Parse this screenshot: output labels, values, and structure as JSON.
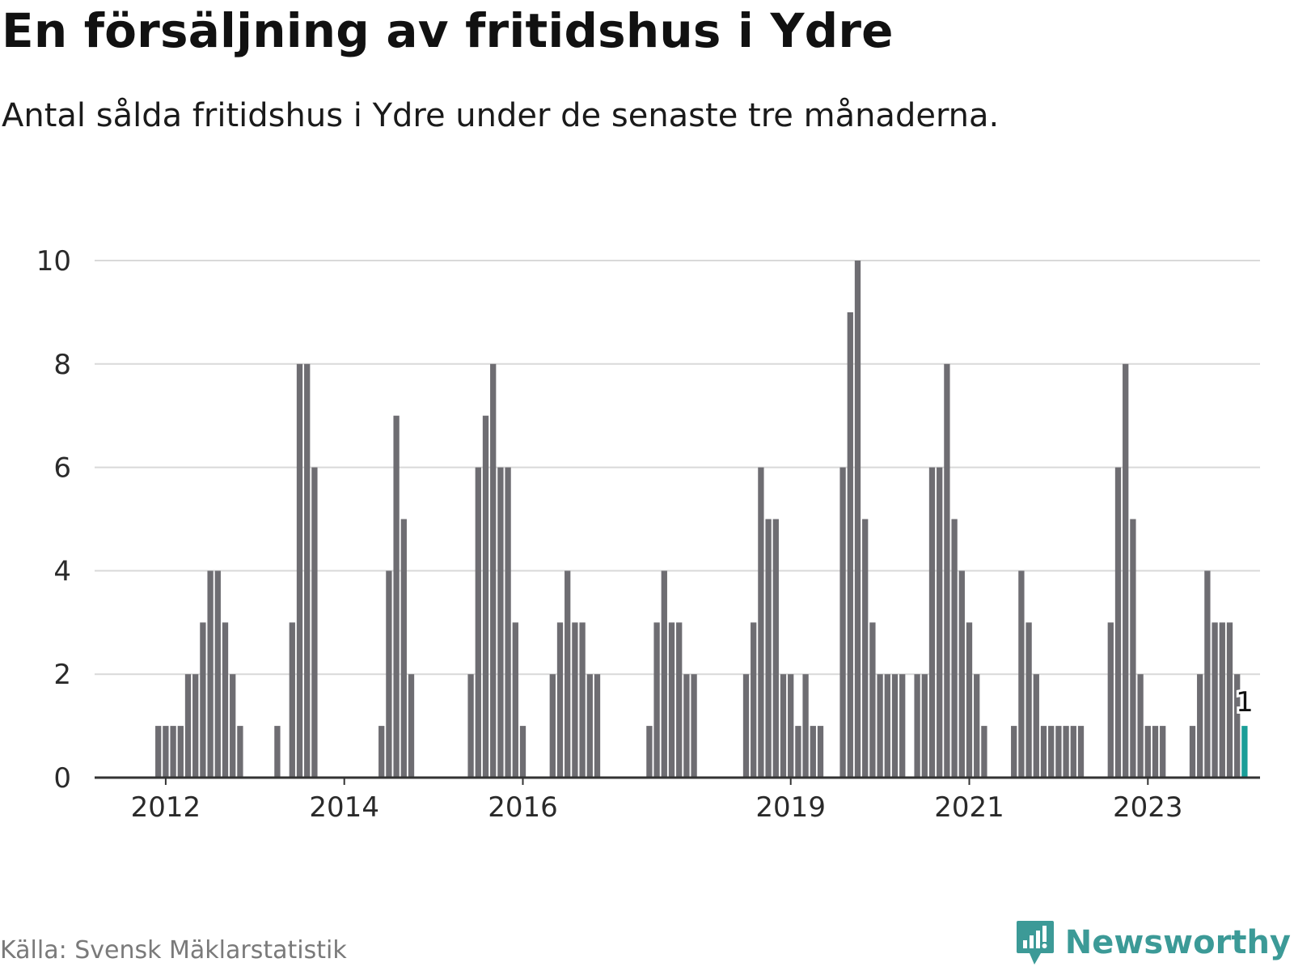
{
  "title": "En försäljning av fritidshus i Ydre",
  "subtitle": "Antal sålda fritidshus i Ydre under de senaste tre månaderna.",
  "source": "Källa: Svensk Mäklarstatistik",
  "brand": "Newsworthy",
  "colors": {
    "bar": "#6e6d72",
    "highlight": "#1a9e98",
    "grid": "#d9d9d9",
    "axis": "#333333",
    "brand": "#3c9a97"
  },
  "chart_data": {
    "type": "bar",
    "start": "2011-11",
    "ylim": [
      0,
      10
    ],
    "yticks": [
      0,
      2,
      4,
      6,
      8,
      10
    ],
    "xtick_labels": [
      "2012",
      "2014",
      "2016",
      "2019",
      "2021",
      "2023"
    ],
    "grid": true,
    "highlight_label": "1",
    "values": [
      0,
      1,
      1,
      1,
      1,
      2,
      2,
      3,
      4,
      4,
      3,
      2,
      1,
      0,
      0,
      0,
      0,
      1,
      0,
      3,
      8,
      8,
      6,
      0,
      0,
      0,
      0,
      0,
      0,
      0,
      0,
      1,
      4,
      7,
      5,
      2,
      0,
      0,
      0,
      0,
      0,
      0,
      0,
      2,
      6,
      7,
      8,
      6,
      6,
      3,
      1,
      0,
      0,
      0,
      2,
      3,
      4,
      3,
      3,
      2,
      2,
      0,
      0,
      0,
      0,
      0,
      0,
      1,
      3,
      4,
      3,
      3,
      2,
      2,
      0,
      0,
      0,
      0,
      0,
      0,
      2,
      3,
      6,
      5,
      5,
      2,
      2,
      1,
      2,
      1,
      1,
      0,
      0,
      6,
      9,
      10,
      5,
      3,
      2,
      2,
      2,
      2,
      0,
      2,
      2,
      6,
      6,
      8,
      5,
      4,
      3,
      2,
      1,
      0,
      0,
      0,
      1,
      4,
      3,
      2,
      1,
      1,
      1,
      1,
      1,
      1,
      0,
      0,
      0,
      3,
      6,
      8,
      5,
      2,
      1,
      1,
      1,
      0,
      0,
      0,
      1,
      2,
      4,
      3,
      3,
      3,
      2,
      1
    ]
  }
}
